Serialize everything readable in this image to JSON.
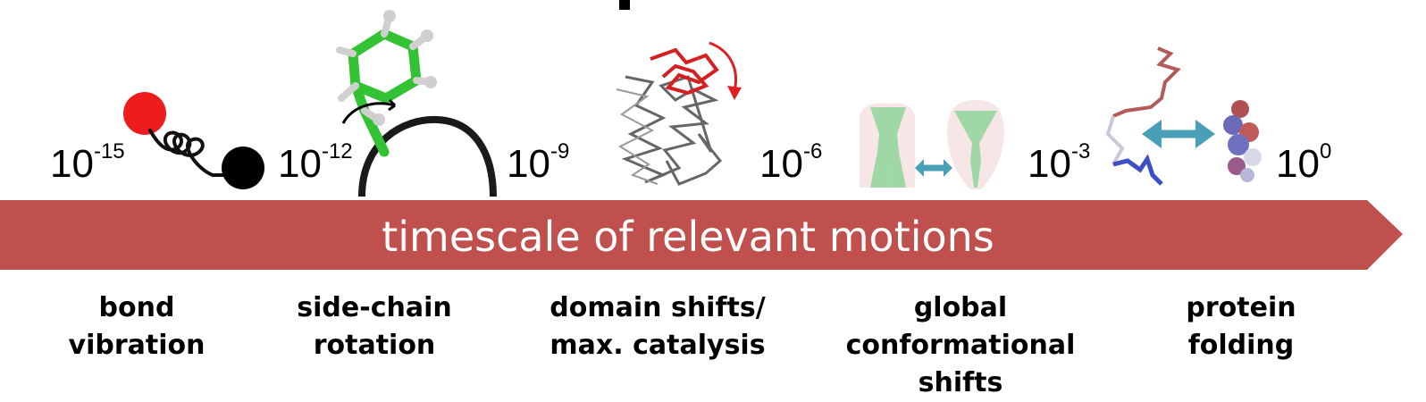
{
  "timescale": {
    "ticks": [
      {
        "base": "10",
        "exp": "-15"
      },
      {
        "base": "10",
        "exp": "-12"
      },
      {
        "base": "10",
        "exp": "-9"
      },
      {
        "base": "10",
        "exp": "-6"
      },
      {
        "base": "10",
        "exp": "-3"
      },
      {
        "base": "10",
        "exp": "0"
      }
    ]
  },
  "banner": {
    "label": "timescale of relevant motions",
    "color": "#c0504d"
  },
  "motions": [
    {
      "line1": "bond vibration",
      "line2": ""
    },
    {
      "line1": "side-chain",
      "line2": "rotation"
    },
    {
      "line1": "domain shifts/",
      "line2": "max. catalysis"
    },
    {
      "line1": "global conformational",
      "line2": "shifts"
    },
    {
      "line1": "protein",
      "line2": "folding"
    }
  ],
  "icons": {
    "bond": "bond-vibration-spring-icon",
    "sidechain": "phenylalanine-sidechain-icon",
    "domain": "protein-domain-ribbon-icon",
    "global": "channel-conformation-icon",
    "folding": "protein-folding-icon"
  },
  "colors": {
    "atom_red": "#ee1c1c",
    "atom_black": "#000000",
    "carbon_green": "#33c233",
    "domain_red": "#d42020",
    "exchange_arrow": "#4a9fb8",
    "channel_green": "#8fd39a",
    "channel_pink": "#f7e6e6"
  }
}
